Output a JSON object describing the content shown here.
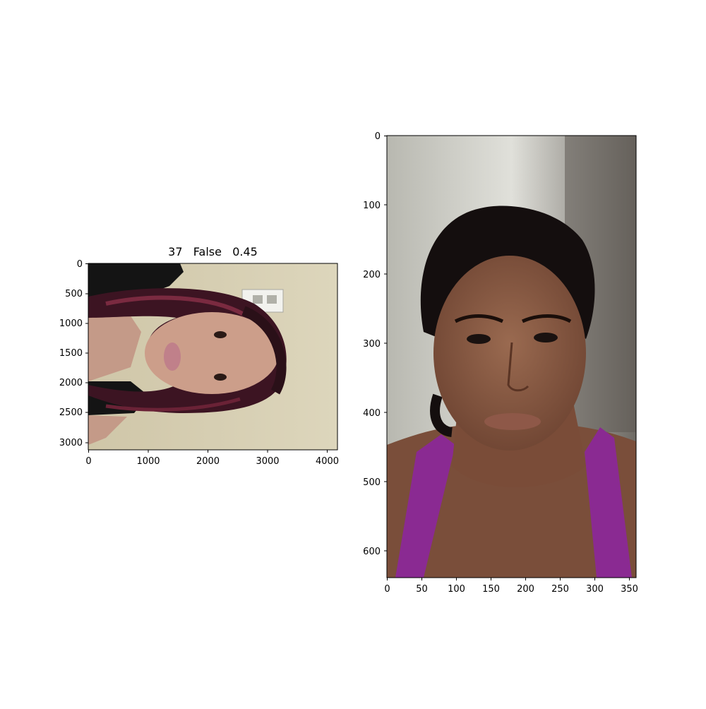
{
  "figure": {
    "left_panel": {
      "title": "37   False   0.45",
      "x_ticks": [
        "0",
        "1000",
        "2000",
        "3000",
        "4000"
      ],
      "y_ticks": [
        "0",
        "500",
        "1000",
        "1500",
        "2000",
        "2500",
        "3000"
      ],
      "image_description_colors": {
        "wall": "#d8d0b4",
        "hair": "#3a1420",
        "shirt": "#1a1a1a",
        "skin": "#c89a86"
      }
    },
    "right_panel": {
      "x_ticks": [
        "0",
        "50",
        "100",
        "150",
        "200",
        "250",
        "300",
        "350"
      ],
      "y_ticks": [
        "0",
        "100",
        "200",
        "300",
        "400",
        "500",
        "600"
      ],
      "image_description_colors": {
        "wall": "#c8c8c0",
        "hair": "#151010",
        "skin": "#8a5a42",
        "top": "#8a2a90"
      }
    }
  }
}
